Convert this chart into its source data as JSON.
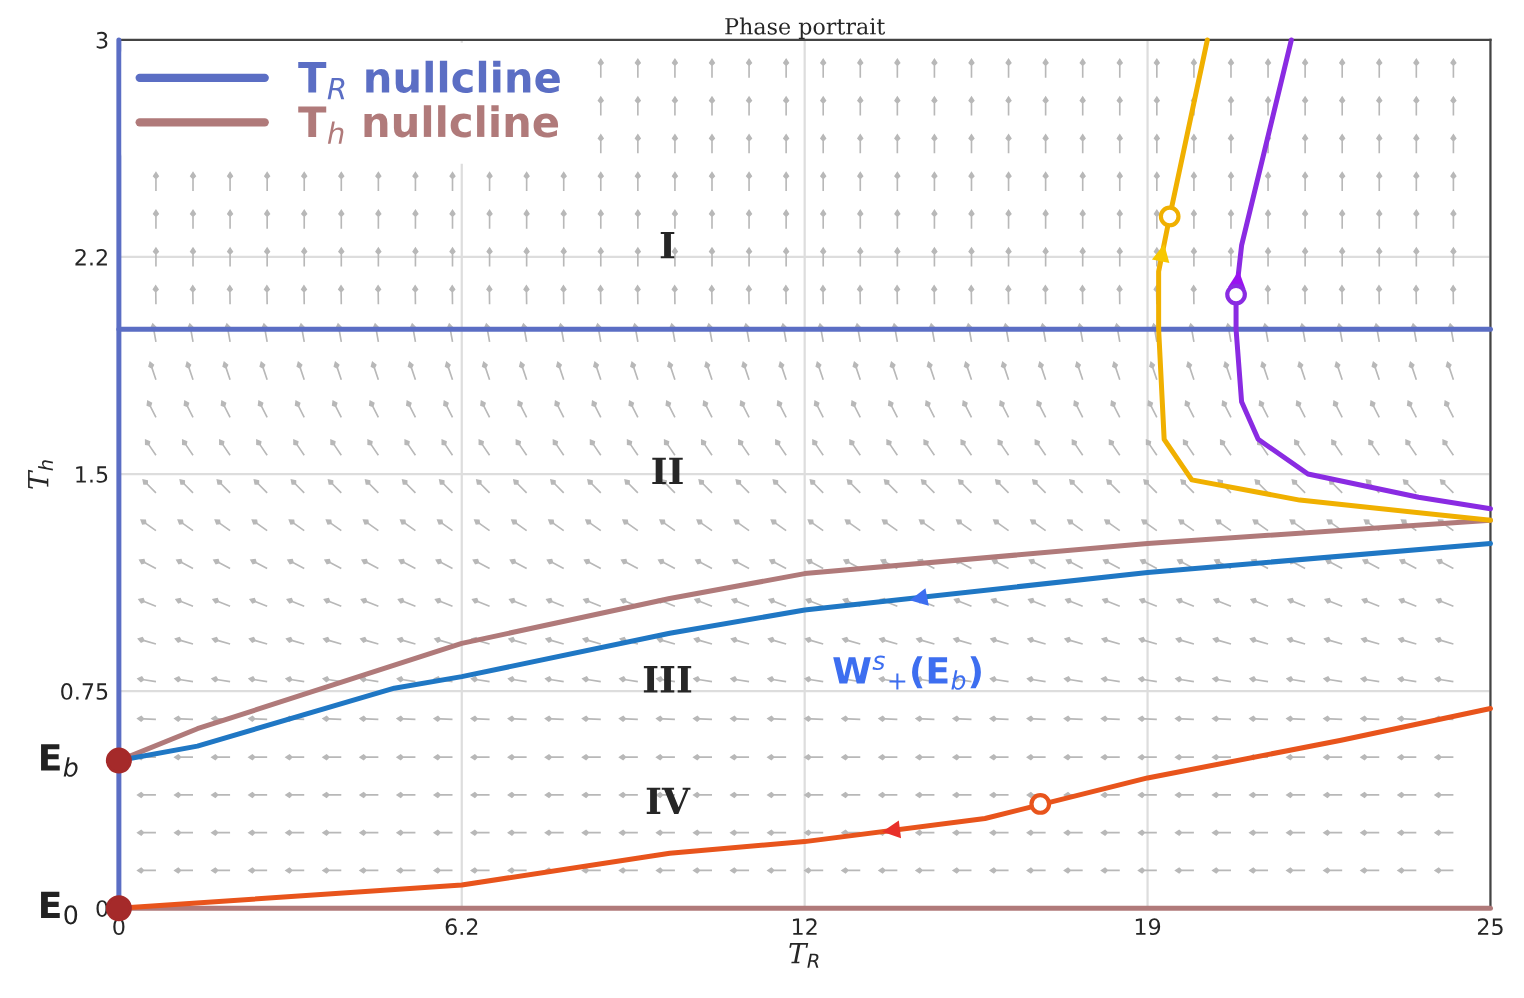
{
  "chart_data": {
    "type": "line",
    "title": "Phase portrait",
    "xlabel": "T$_{R}$",
    "ylabel": "T$_{h}$",
    "xlim": [
      0,
      24.8
    ],
    "ylim": [
      0,
      3
    ],
    "xticks": [
      0,
      6.2,
      {
        "value": 12.4,
        "label": "12"
      },
      {
        "value": 18.6,
        "label": "19"
      },
      {
        "value": 24.8,
        "label": "25"
      }
    ],
    "yticks": [
      0,
      0.75,
      1.5,
      {
        "value": 2.25,
        "label": "2.2"
      },
      3
    ],
    "grid": true,
    "legend": "top left",
    "marker": "none",
    "line_style": "solid",
    "series": [
      {
        "name": "T$_{R}$ nullcline",
        "color": "#5b6ec4",
        "x": [
          0,
          24.8
        ],
        "values": [
          2.0,
          2.0
        ]
      },
      {
        "color": "#5b6ec4",
        "x": [
          0,
          0
        ],
        "values": [
          0,
          3
        ]
      },
      {
        "name": "T$_{h}$ nullcline",
        "color": "#b07a7a",
        "x": [
          0,
          1.42,
          4.98,
          6.2,
          9.96,
          12.4,
          18.6,
          24.8
        ],
        "values": [
          0.51,
          0.62,
          0.84,
          0.915,
          1.07,
          1.156,
          1.26,
          1.34
        ]
      },
      {
        "color": "#b07a7a",
        "x": [
          0,
          24.8
        ],
        "values": [
          0,
          0
        ]
      },
      {
        "color": "#1f77c4",
        "x": [
          0,
          1.42,
          4.98,
          6.2,
          9.96,
          12.4,
          18.6,
          24.8
        ],
        "values": [
          0.51,
          0.56,
          0.76,
          0.8,
          0.95,
          1.03,
          1.16,
          1.26
        ]
      },
      {
        "color": "#e8541c",
        "x": [
          0,
          6.2,
          9.96,
          12.4,
          15.66,
          18.6,
          22.1,
          24.8
        ],
        "values": [
          0,
          0.08,
          0.19,
          0.23,
          0.31,
          0.45,
          0.58,
          0.69
        ]
      },
      {
        "color": "#f0b000",
        "x": [
          19.68,
          19.0,
          18.8,
          18.8,
          18.9,
          19.4,
          21.35,
          24.8
        ],
        "values": [
          3,
          2.39,
          2.2,
          2.0,
          1.62,
          1.48,
          1.41,
          1.34
        ]
      },
      {
        "color": "#8a2be2",
        "x": [
          21.2,
          20.3,
          20.2,
          20.2,
          20.3,
          20.6,
          21.5,
          23.5,
          24.8
        ],
        "values": [
          3,
          2.29,
          2.12,
          2.0,
          1.75,
          1.62,
          1.5,
          1.42,
          1.38
        ]
      },
      {
        "type": "scatter",
        "color": "#a52a2a",
        "marker": "circle",
        "x": [
          0,
          0
        ],
        "values": [
          0.51,
          0
        ]
      },
      {
        "type": "scatter",
        "color": "#e8541c",
        "marker": "circle",
        "x": [
          16.66
        ],
        "values": [
          0.36
        ]
      },
      {
        "type": "scatter",
        "color": "#f0b000",
        "marker": "circle",
        "x": [
          19.0
        ],
        "values": [
          2.39
        ]
      },
      {
        "type": "scatter",
        "color": "#8a2be2",
        "marker": "circle",
        "x": [
          20.2
        ],
        "values": [
          2.12
        ]
      }
    ],
    "annotations": [
      "I",
      "II",
      "III",
      "IV",
      "W$^{s}$$_{+}$(E$_{b}$)",
      {
        "text": "E$_{b}$",
        "x": 0,
        "y": 0.51
      },
      {
        "text": "E$_{0}$",
        "x": 0,
        "y": 0
      }
    ]
  }
}
